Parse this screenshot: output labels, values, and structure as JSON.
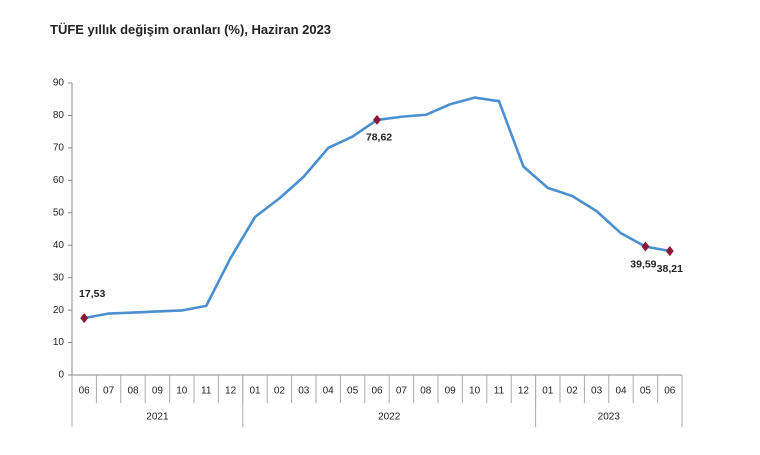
{
  "chart_data": {
    "type": "line",
    "title": "TÜFE yıllık değişim oranları (%), Haziran 2023",
    "categories": [
      "06",
      "07",
      "08",
      "09",
      "10",
      "11",
      "12",
      "01",
      "02",
      "03",
      "04",
      "05",
      "06",
      "07",
      "08",
      "09",
      "10",
      "11",
      "12",
      "01",
      "02",
      "03",
      "04",
      "05",
      "06"
    ],
    "groups": [
      {
        "label": "2021",
        "size": 7
      },
      {
        "label": "2022",
        "size": 12
      },
      {
        "label": "2023",
        "size": 6
      }
    ],
    "series": [
      {
        "color": "#4a90d0",
        "values": [
          17.53,
          18.95,
          19.25,
          19.58,
          19.89,
          21.31,
          36.08,
          48.69,
          54.44,
          61.14,
          69.97,
          73.5,
          78.62,
          79.6,
          80.21,
          83.45,
          85.51,
          84.39,
          64.27,
          57.68,
          55.18,
          50.51,
          43.68,
          39.59,
          38.21
        ],
        "value_labels": [
          "17,53",
          null,
          null,
          null,
          null,
          null,
          null,
          null,
          null,
          null,
          null,
          null,
          "78,62",
          null,
          null,
          null,
          null,
          null,
          null,
          null,
          null,
          null,
          null,
          "39,59",
          "38,21"
        ]
      }
    ],
    "marker_color": "#8b1a3a",
    "ylim": [
      0,
      90
    ],
    "yticks": [
      0,
      10,
      20,
      30,
      40,
      50,
      60,
      70,
      80,
      90
    ]
  }
}
